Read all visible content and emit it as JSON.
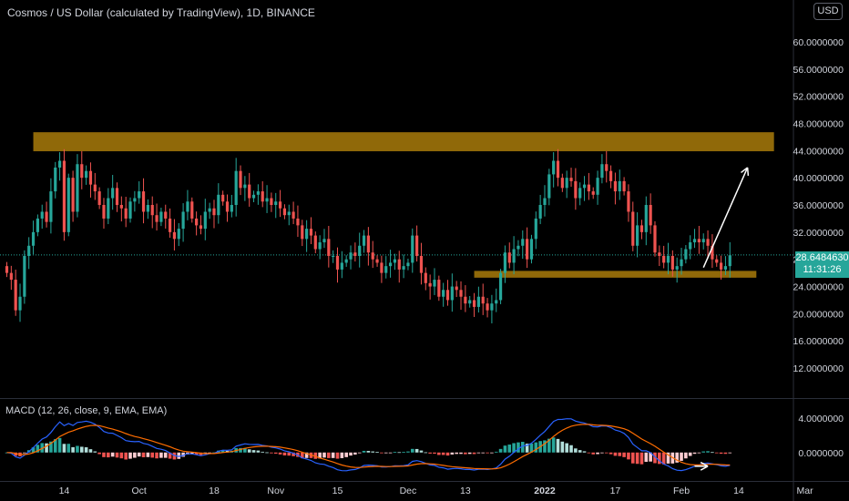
{
  "header": {
    "title": "Cosmos / US Dollar (calculated by TradingView), 1D, BINANCE",
    "currency": "USD"
  },
  "last_price": {
    "price": "28.6484630",
    "countdown": "11:31:26"
  },
  "macd": {
    "label": "MACD (12, 26, close, 9, EMA, EMA)"
  },
  "colors": {
    "background": "#000000",
    "up": "#26a69a",
    "down": "#ef5350",
    "zone": "#b8860b",
    "macd_line": "#2962ff",
    "signal_line": "#ff6d00",
    "arrow": "#ffffff"
  },
  "annotations": [
    {
      "type": "zone",
      "label": "resistance zone",
      "y_range": [
        43.9,
        46.7
      ]
    },
    {
      "type": "zone",
      "label": "support zone",
      "y_range": [
        25.3,
        26.3
      ]
    },
    {
      "type": "arrow",
      "label": "projected move up",
      "from_x": 158,
      "to_x": 168,
      "from_y": 26.8,
      "to_y": 41.5
    },
    {
      "type": "arrow",
      "label": "macd turn",
      "from_x": 156,
      "to_x": 159,
      "from_y": -1.6,
      "to_y": -1.6
    }
  ],
  "chart_data": [
    {
      "type": "candlestick",
      "title": "Cosmos / US Dollar (calculated by TradingView), 1D, BINANCE",
      "x_unit": "days since Sep 1 2021",
      "x_ticks": [
        {
          "x": 13,
          "label": "14"
        },
        {
          "x": 30,
          "label": "Oct"
        },
        {
          "x": 47,
          "label": "18"
        },
        {
          "x": 61,
          "label": "Nov"
        },
        {
          "x": 75,
          "label": "15"
        },
        {
          "x": 91,
          "label": "Dec"
        },
        {
          "x": 104,
          "label": "13"
        },
        {
          "x": 122,
          "label": "2022"
        },
        {
          "x": 138,
          "label": "17"
        },
        {
          "x": 153,
          "label": "Feb"
        },
        {
          "x": 166,
          "label": "14"
        },
        {
          "x": 181,
          "label": "Mar"
        }
      ],
      "y_ticks": [
        "60.0000000",
        "56.0000000",
        "52.0000000",
        "48.0000000",
        "44.0000000",
        "40.0000000",
        "36.0000000",
        "32.0000000",
        "28.0000000",
        "24.0000000",
        "20.0000000",
        "16.0000000",
        "12.0000000"
      ],
      "ylim": [
        9.6,
        62.4
      ],
      "last_price": 28.648463,
      "closes": [
        26.0,
        25.0,
        20.5,
        22.5,
        28.5,
        30.0,
        32.0,
        34.0,
        35.0,
        33.5,
        38.0,
        41.5,
        42.5,
        32.0,
        40.0,
        35.0,
        42.0,
        40.0,
        41.0,
        39.0,
        38.0,
        36.0,
        34.0,
        37.0,
        38.5,
        36.0,
        35.5,
        34.0,
        36.5,
        37.0,
        38.0,
        35.0,
        36.0,
        34.5,
        33.5,
        35.0,
        34.0,
        32.0,
        31.0,
        32.5,
        35.0,
        36.5,
        34.0,
        33.0,
        32.5,
        35.0,
        35.5,
        34.5,
        37.5,
        36.5,
        35.0,
        36.0,
        41.0,
        38.5,
        39.0,
        37.0,
        37.5,
        38.0,
        36.5,
        37.0,
        36.0,
        36.5,
        35.5,
        34.5,
        35.0,
        34.0,
        33.0,
        31.0,
        32.5,
        31.5,
        29.5,
        30.5,
        31.0,
        28.5,
        28.5,
        26.5,
        27.5,
        28.0,
        29.0,
        28.5,
        30.0,
        31.5,
        29.0,
        28.0,
        27.5,
        26.0,
        27.0,
        27.5,
        28.0,
        26.5,
        27.0,
        27.5,
        31.5,
        28.5,
        26.0,
        24.5,
        24.0,
        25.0,
        22.5,
        23.5,
        22.0,
        24.0,
        23.5,
        22.5,
        21.5,
        22.0,
        21.0,
        22.5,
        21.5,
        20.5,
        21.5,
        22.0,
        26.0,
        29.0,
        27.5,
        29.5,
        30.0,
        31.0,
        28.0,
        31.0,
        34.0,
        36.0,
        37.0,
        40.5,
        42.5,
        40.0,
        38.5,
        40.0,
        39.5,
        37.0,
        38.5,
        39.0,
        38.0,
        37.5,
        40.0,
        42.0,
        41.0,
        39.5,
        38.0,
        39.5,
        38.0,
        35.0,
        30.0,
        33.0,
        32.0,
        36.0,
        33.0,
        29.0,
        28.5,
        27.5,
        28.5,
        26.5,
        27.0,
        28.0,
        29.5,
        30.5,
        31.0,
        30.5,
        31.0,
        30.0,
        28.0,
        27.5,
        26.5,
        27.0,
        28.6
      ],
      "macd": {
        "ylim": [
          -3.0,
          5.5
        ],
        "y_ticks": [
          "4.0000000",
          "0.0000000"
        ]
      }
    }
  ]
}
